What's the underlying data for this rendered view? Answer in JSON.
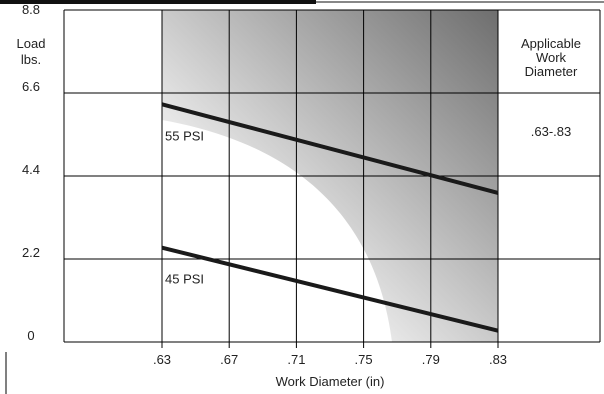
{
  "chart_data": {
    "type": "line",
    "xlabel": "Work Diameter (in)",
    "ylabel": "Load\nlbs.",
    "x_ticks": [
      ".63",
      ".67",
      ".71",
      ".75",
      ".79",
      ".83"
    ],
    "x_tick_values": [
      0.63,
      0.67,
      0.71,
      0.75,
      0.79,
      0.83
    ],
    "y_ticks": [
      "0",
      "2.2",
      "4.4",
      "6.6",
      "8.8"
    ],
    "y_tick_values": [
      0,
      2.2,
      4.4,
      6.6,
      8.8
    ],
    "xlim": [
      0.55,
      0.83
    ],
    "ylim": [
      0,
      8.8
    ],
    "grid": true,
    "series": [
      {
        "name": "55 PSI",
        "x": [
          0.63,
          0.83
        ],
        "y": [
          6.3,
          3.95
        ],
        "color": "#1a1a1a"
      },
      {
        "name": "45 PSI",
        "x": [
          0.63,
          0.83
        ],
        "y": [
          2.5,
          0.3
        ],
        "color": "#1a1a1a"
      }
    ],
    "side_panel": {
      "title": "Applicable\nWork\nDiameter",
      "value": ".63-.83"
    },
    "colors": {
      "shade_light": "#f2f2f2",
      "shade_dark": "#7a7a7a",
      "grid": "#000000"
    }
  }
}
